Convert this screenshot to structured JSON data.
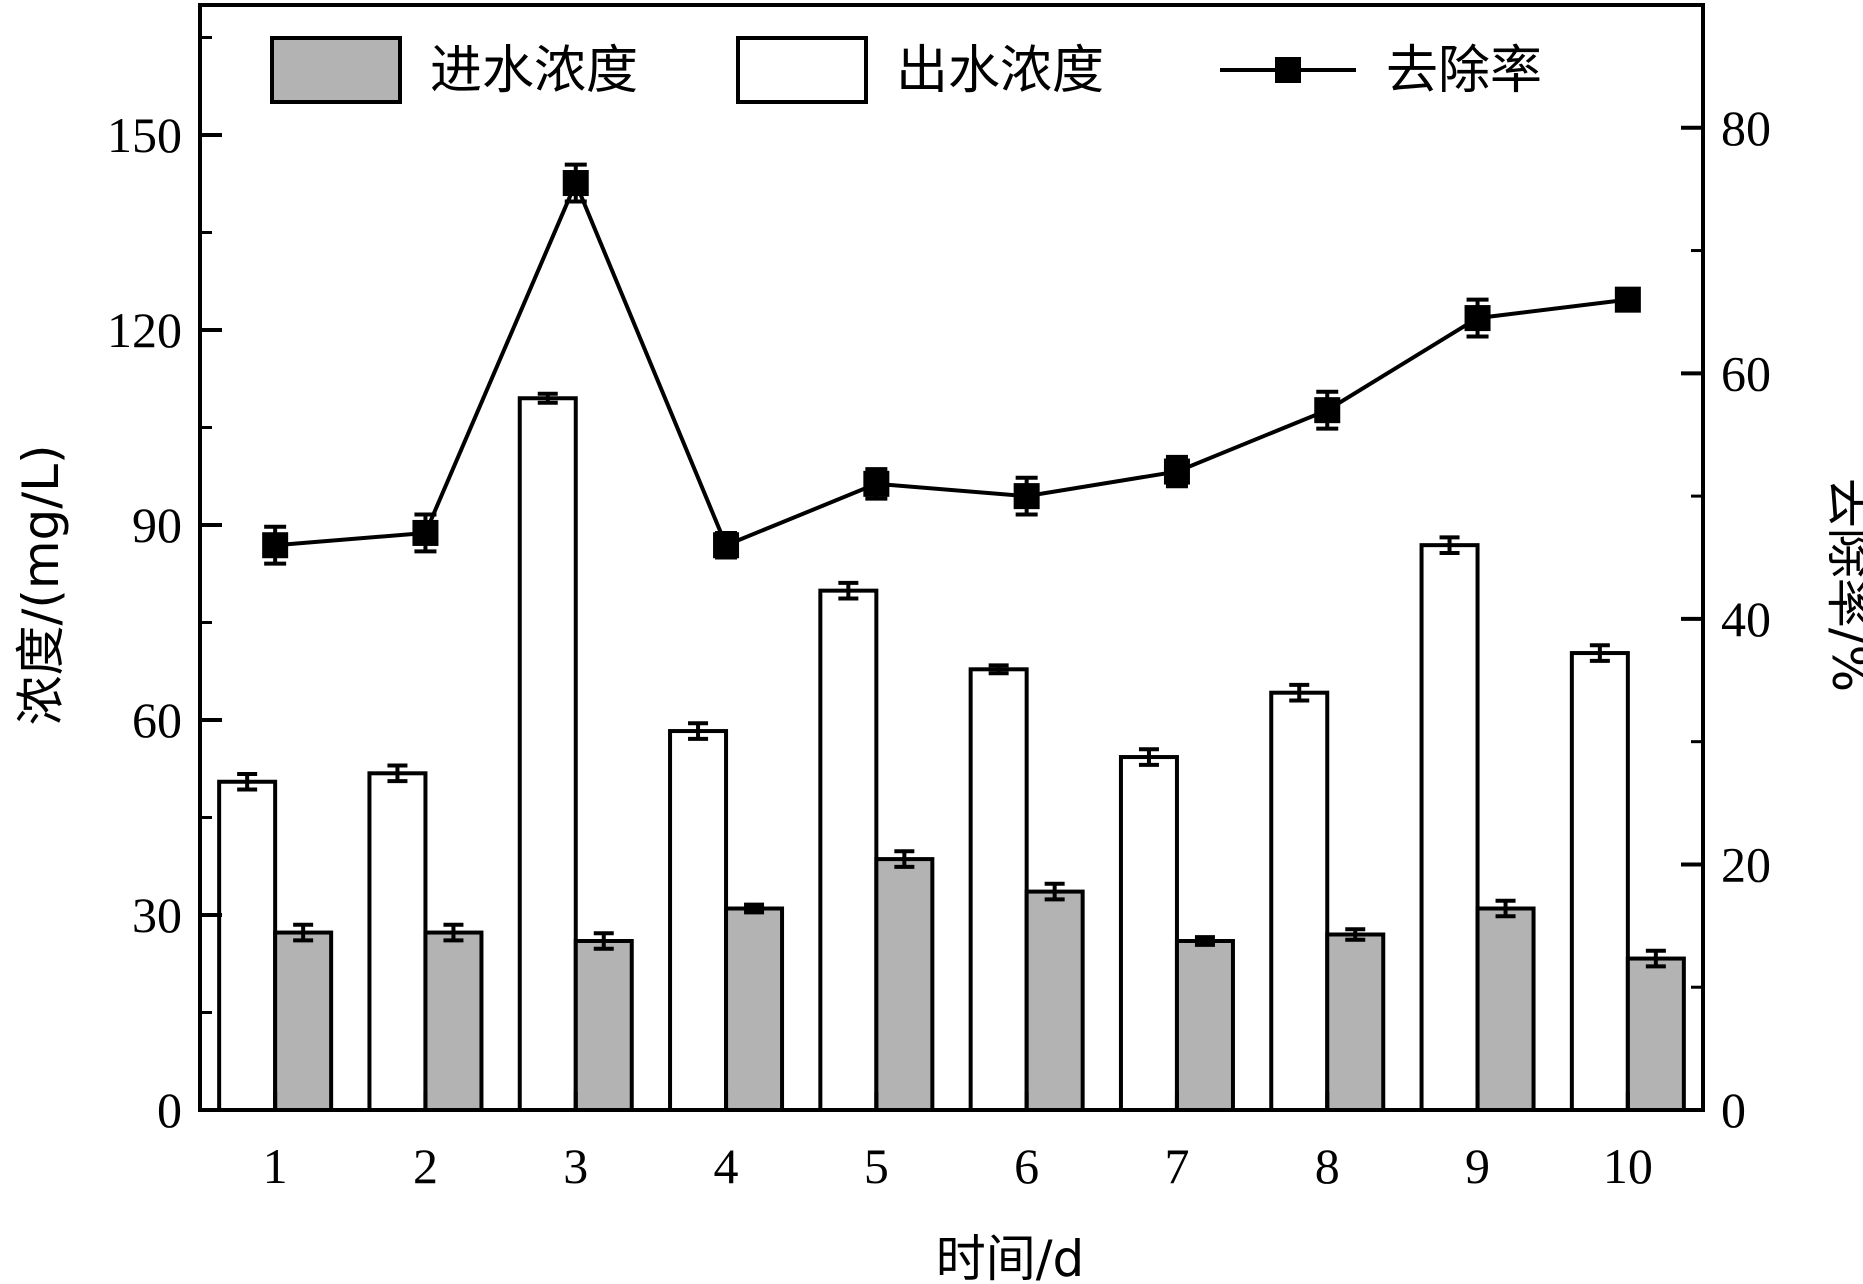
{
  "chart_data": {
    "type": "bar",
    "categories": [
      "1",
      "2",
      "3",
      "4",
      "5",
      "6",
      "7",
      "8",
      "9",
      "10"
    ],
    "xlabel": "时间/d",
    "ylabel": "浓度/(mg/L)",
    "y2label": "去除率/%",
    "ylim": [
      0,
      170
    ],
    "y2lim": [
      0,
      90
    ],
    "yticks": [
      0,
      30,
      60,
      90,
      120,
      150
    ],
    "y2ticks": [
      0,
      20,
      40,
      60,
      80
    ],
    "legend_position": "top",
    "series": [
      {
        "name": "出水浓度",
        "kind": "bar",
        "axis": "left",
        "fill": "#ffffff",
        "values": [
          50.5,
          51.8,
          109.5,
          58.3,
          79.9,
          67.8,
          54.3,
          64.2,
          86.9,
          70.3
        ],
        "errors": [
          1.2,
          1.2,
          0.7,
          1.2,
          1.2,
          0.6,
          1.2,
          1.2,
          1.2,
          1.2
        ]
      },
      {
        "name": "进水浓度",
        "kind": "bar",
        "axis": "left",
        "fill": "#b3b3b3",
        "values": [
          27.3,
          27.3,
          26.0,
          31.0,
          38.6,
          33.6,
          26.0,
          27.0,
          31.0,
          23.3
        ],
        "errors": [
          1.2,
          1.2,
          1.2,
          0.6,
          1.2,
          1.2,
          0.6,
          0.8,
          1.2,
          1.2
        ]
      },
      {
        "name": "去除率",
        "kind": "line",
        "axis": "right",
        "color": "#000000",
        "values": [
          46.0,
          47.0,
          75.5,
          46.0,
          51.0,
          50.0,
          52.0,
          57.0,
          64.5,
          66.0
        ],
        "errors": [
          1.5,
          1.5,
          1.5,
          1.0,
          1.2,
          1.5,
          1.2,
          1.5,
          1.5,
          0.5
        ]
      }
    ]
  }
}
